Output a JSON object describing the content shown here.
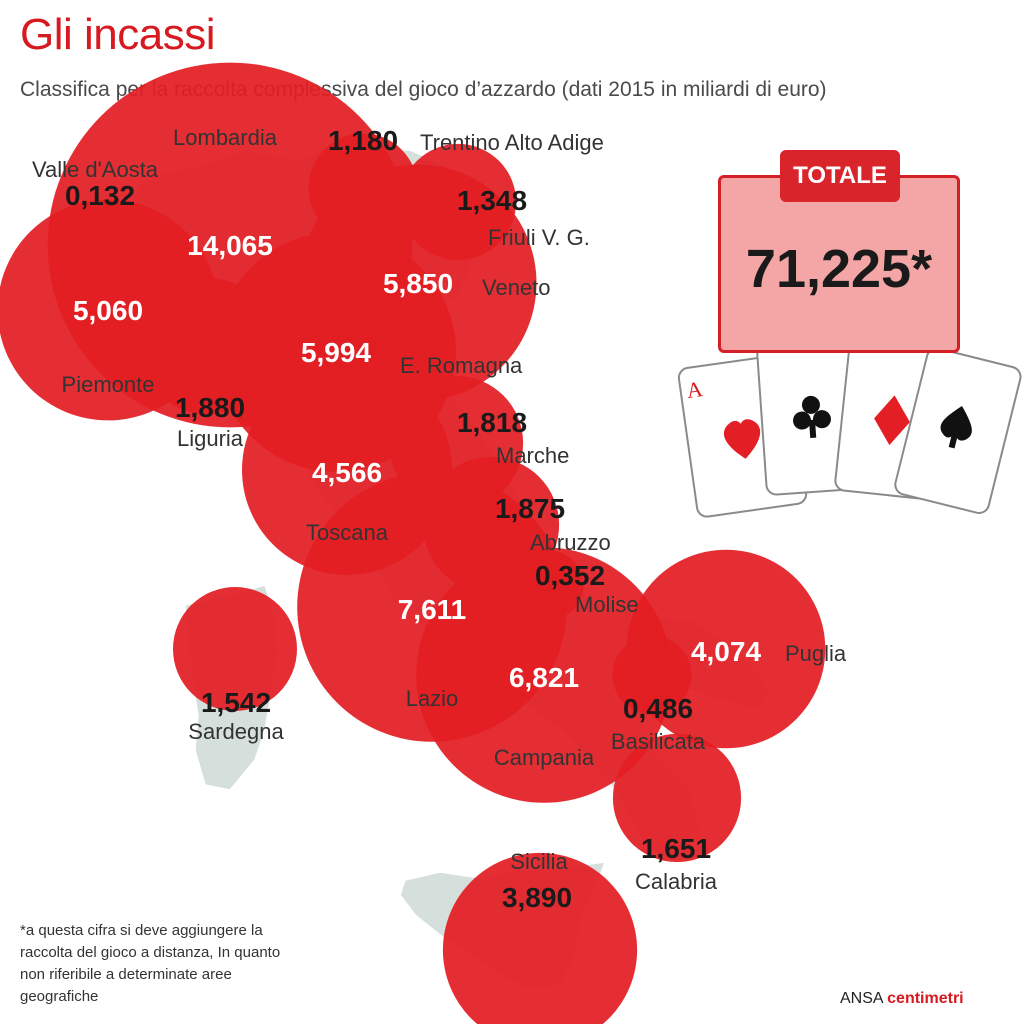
{
  "title": "Gli incassi",
  "subtitle": "Classifica per la raccolta complessiva del gioco d’azzardo (dati 2015 in miliardi di euro)",
  "total": {
    "label": "TOTALE",
    "value": "71,225*"
  },
  "footnote": "*a questa cifra si deve aggiungere la raccolta del gioco a distanza, In quanto non riferibile a determinate aree geografiche",
  "credit": {
    "prefix": "ANSA",
    "brand": "centimetri"
  },
  "colors": {
    "bubble": "#e31e24",
    "map": "#d5dfdc",
    "title": "#d71920",
    "total_fill": "#f4a6a6",
    "total_border": "#d32026"
  },
  "icons": [
    "playing-cards-aces-icon"
  ],
  "chart_data": {
    "type": "bubble-map",
    "unit": "miliardi di euro",
    "regions": [
      {
        "name": "Lombardia",
        "value": 14.065,
        "label": "14,065"
      },
      {
        "name": "Trentino Alto Adige",
        "value": 1.18,
        "label": "1,180"
      },
      {
        "name": "Valle d'Aosta",
        "value": 0.132,
        "label": "0,132"
      },
      {
        "name": "Friuli V. G.",
        "value": 1.348,
        "label": "1,348"
      },
      {
        "name": "Veneto",
        "value": 5.85,
        "label": "5,850"
      },
      {
        "name": "Piemonte",
        "value": 5.06,
        "label": "5,060"
      },
      {
        "name": "E. Romagna",
        "value": 5.994,
        "label": "5,994"
      },
      {
        "name": "Liguria",
        "value": 1.88,
        "label": "1,880"
      },
      {
        "name": "Marche",
        "value": 1.818,
        "label": "1,818"
      },
      {
        "name": "Toscana",
        "value": 4.566,
        "label": "4,566"
      },
      {
        "name": "Abruzzo",
        "value": 1.875,
        "label": "1,875"
      },
      {
        "name": "Molise",
        "value": 0.352,
        "label": "0,352"
      },
      {
        "name": "Lazio",
        "value": 7.611,
        "label": "7,611"
      },
      {
        "name": "Sardegna",
        "value": 1.542,
        "label": "1,542"
      },
      {
        "name": "Puglia",
        "value": 4.074,
        "label": "4,074"
      },
      {
        "name": "Campania",
        "value": 6.821,
        "label": "6,821"
      },
      {
        "name": "Basilicata",
        "value": 0.486,
        "label": "0,486"
      },
      {
        "name": "Calabria",
        "value": 1.651,
        "label": "1,651"
      },
      {
        "name": "Sicilia",
        "value": 3.89,
        "label": "3,890"
      }
    ]
  }
}
